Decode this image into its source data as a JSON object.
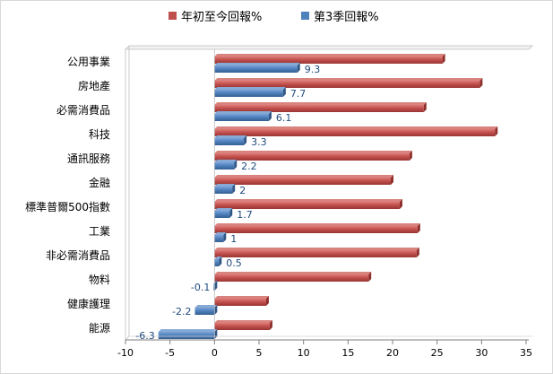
{
  "chart_data": {
    "type": "bar",
    "orientation": "horizontal",
    "title": "",
    "xlabel": "",
    "ylabel": "",
    "xlim": [
      -10,
      35
    ],
    "x_ticks": [
      -10,
      -5,
      0,
      5,
      10,
      15,
      20,
      25,
      30,
      35
    ],
    "grid": false,
    "legend_position": "top",
    "categories": [
      "公用事業",
      "房地產",
      "必需消費品",
      "科技",
      "通訊服務",
      "金融",
      "標準普爾500指數",
      "工業",
      "非必需消費品",
      "物料",
      "健康護理",
      "能源"
    ],
    "series": [
      {
        "name": "年初至今回報%",
        "color": "#c0504d",
        "values": [
          25.6,
          29.8,
          23.5,
          31.5,
          21.9,
          19.8,
          20.8,
          22.8,
          22.7,
          17.3,
          5.8,
          6.2
        ],
        "show_labels": false
      },
      {
        "name": "第3季回報%",
        "color": "#4f81bd",
        "values": [
          9.3,
          7.7,
          6.1,
          3.3,
          2.2,
          2,
          1.7,
          1,
          0.5,
          -0.1,
          -2.2,
          -6.3
        ],
        "labels": [
          "9.3",
          "7.7",
          "6.1",
          "3.3",
          "2.2",
          "2",
          "1.7",
          "1",
          "0.5",
          "-0.1",
          "-2.2",
          "-6.3"
        ],
        "show_labels": true
      }
    ]
  }
}
